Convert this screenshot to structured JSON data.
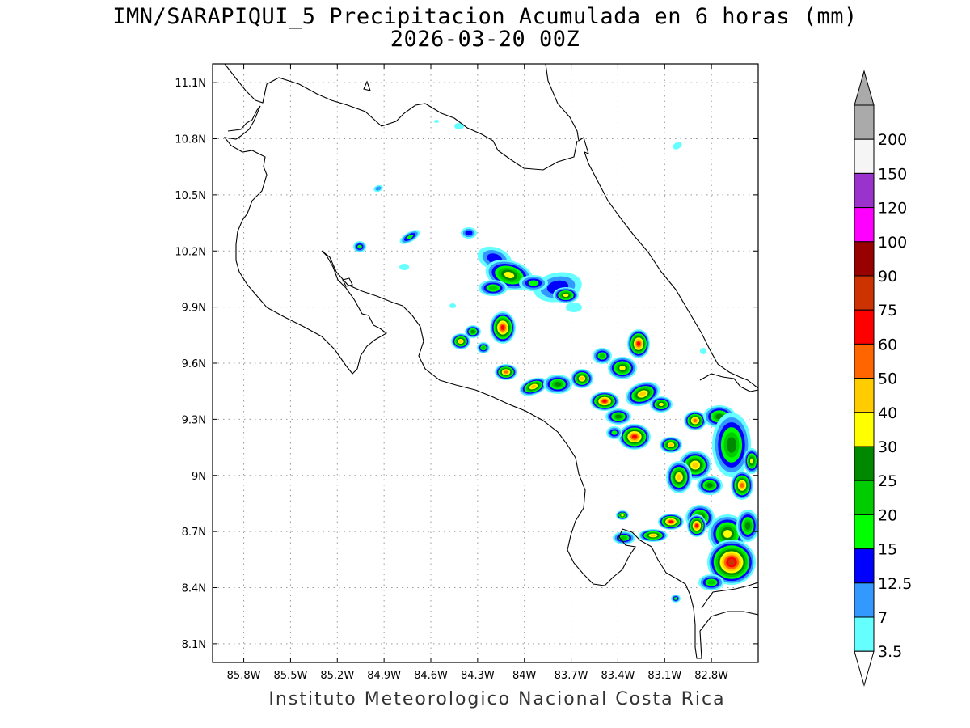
{
  "title": {
    "line1": "IMN/SARAPIQUI_5 Precipitacion Acumulada en 6 horas (mm)",
    "line2": "2026-03-20 00Z"
  },
  "map": {
    "lon_range": [
      -86.0,
      -82.5
    ],
    "lat_range": [
      8.0,
      11.2
    ],
    "lon_ticks": [
      {
        "value": -85.8,
        "label": "85.8W"
      },
      {
        "value": -85.5,
        "label": "85.5W"
      },
      {
        "value": -85.2,
        "label": "85.2W"
      },
      {
        "value": -84.9,
        "label": "84.9W"
      },
      {
        "value": -84.6,
        "label": "84.6W"
      },
      {
        "value": -84.3,
        "label": "84.3W"
      },
      {
        "value": -84.0,
        "label": "84W"
      },
      {
        "value": -83.7,
        "label": "83.7W"
      },
      {
        "value": -83.4,
        "label": "83.4W"
      },
      {
        "value": -83.1,
        "label": "83.1W"
      },
      {
        "value": -82.8,
        "label": "82.8W"
      }
    ],
    "lat_ticks": [
      {
        "value": 11.1,
        "label": "11.1N"
      },
      {
        "value": 10.8,
        "label": "10.8N"
      },
      {
        "value": 10.5,
        "label": "10.5N"
      },
      {
        "value": 10.2,
        "label": "10.2N"
      },
      {
        "value": 9.9,
        "label": "9.9N"
      },
      {
        "value": 9.6,
        "label": "9.6N"
      },
      {
        "value": 9.3,
        "label": "9.3N"
      },
      {
        "value": 9.0,
        "label": "9N"
      },
      {
        "value": 8.7,
        "label": "8.7N"
      },
      {
        "value": 8.4,
        "label": "8.4N"
      },
      {
        "value": 8.1,
        "label": "8.1N"
      }
    ],
    "grid": true
  },
  "colorbar": {
    "levels": [
      {
        "label": "3.5",
        "color": "#66ffff"
      },
      {
        "label": "7",
        "color": "#3399ff"
      },
      {
        "label": "12.5",
        "color": "#0000ff"
      },
      {
        "label": "15",
        "color": "#00ff00"
      },
      {
        "label": "20",
        "color": "#00cc00"
      },
      {
        "label": "25",
        "color": "#008800"
      },
      {
        "label": "30",
        "color": "#ffff00"
      },
      {
        "label": "40",
        "color": "#ffcc00"
      },
      {
        "label": "50",
        "color": "#ff6600"
      },
      {
        "label": "60",
        "color": "#ff0000"
      },
      {
        "label": "75",
        "color": "#cc3300"
      },
      {
        "label": "90",
        "color": "#990000"
      },
      {
        "label": "100",
        "color": "#ff00ff"
      },
      {
        "label": "120",
        "color": "#9933cc"
      },
      {
        "label": "150",
        "color": "#f5f5f5"
      },
      {
        "label": "200",
        "color": "#aaaaaa"
      }
    ],
    "under_color": "#ffffff",
    "over_color": "#aaaaaa"
  },
  "footer": "Instituto Meteorologico Nacional Costa Rica"
}
